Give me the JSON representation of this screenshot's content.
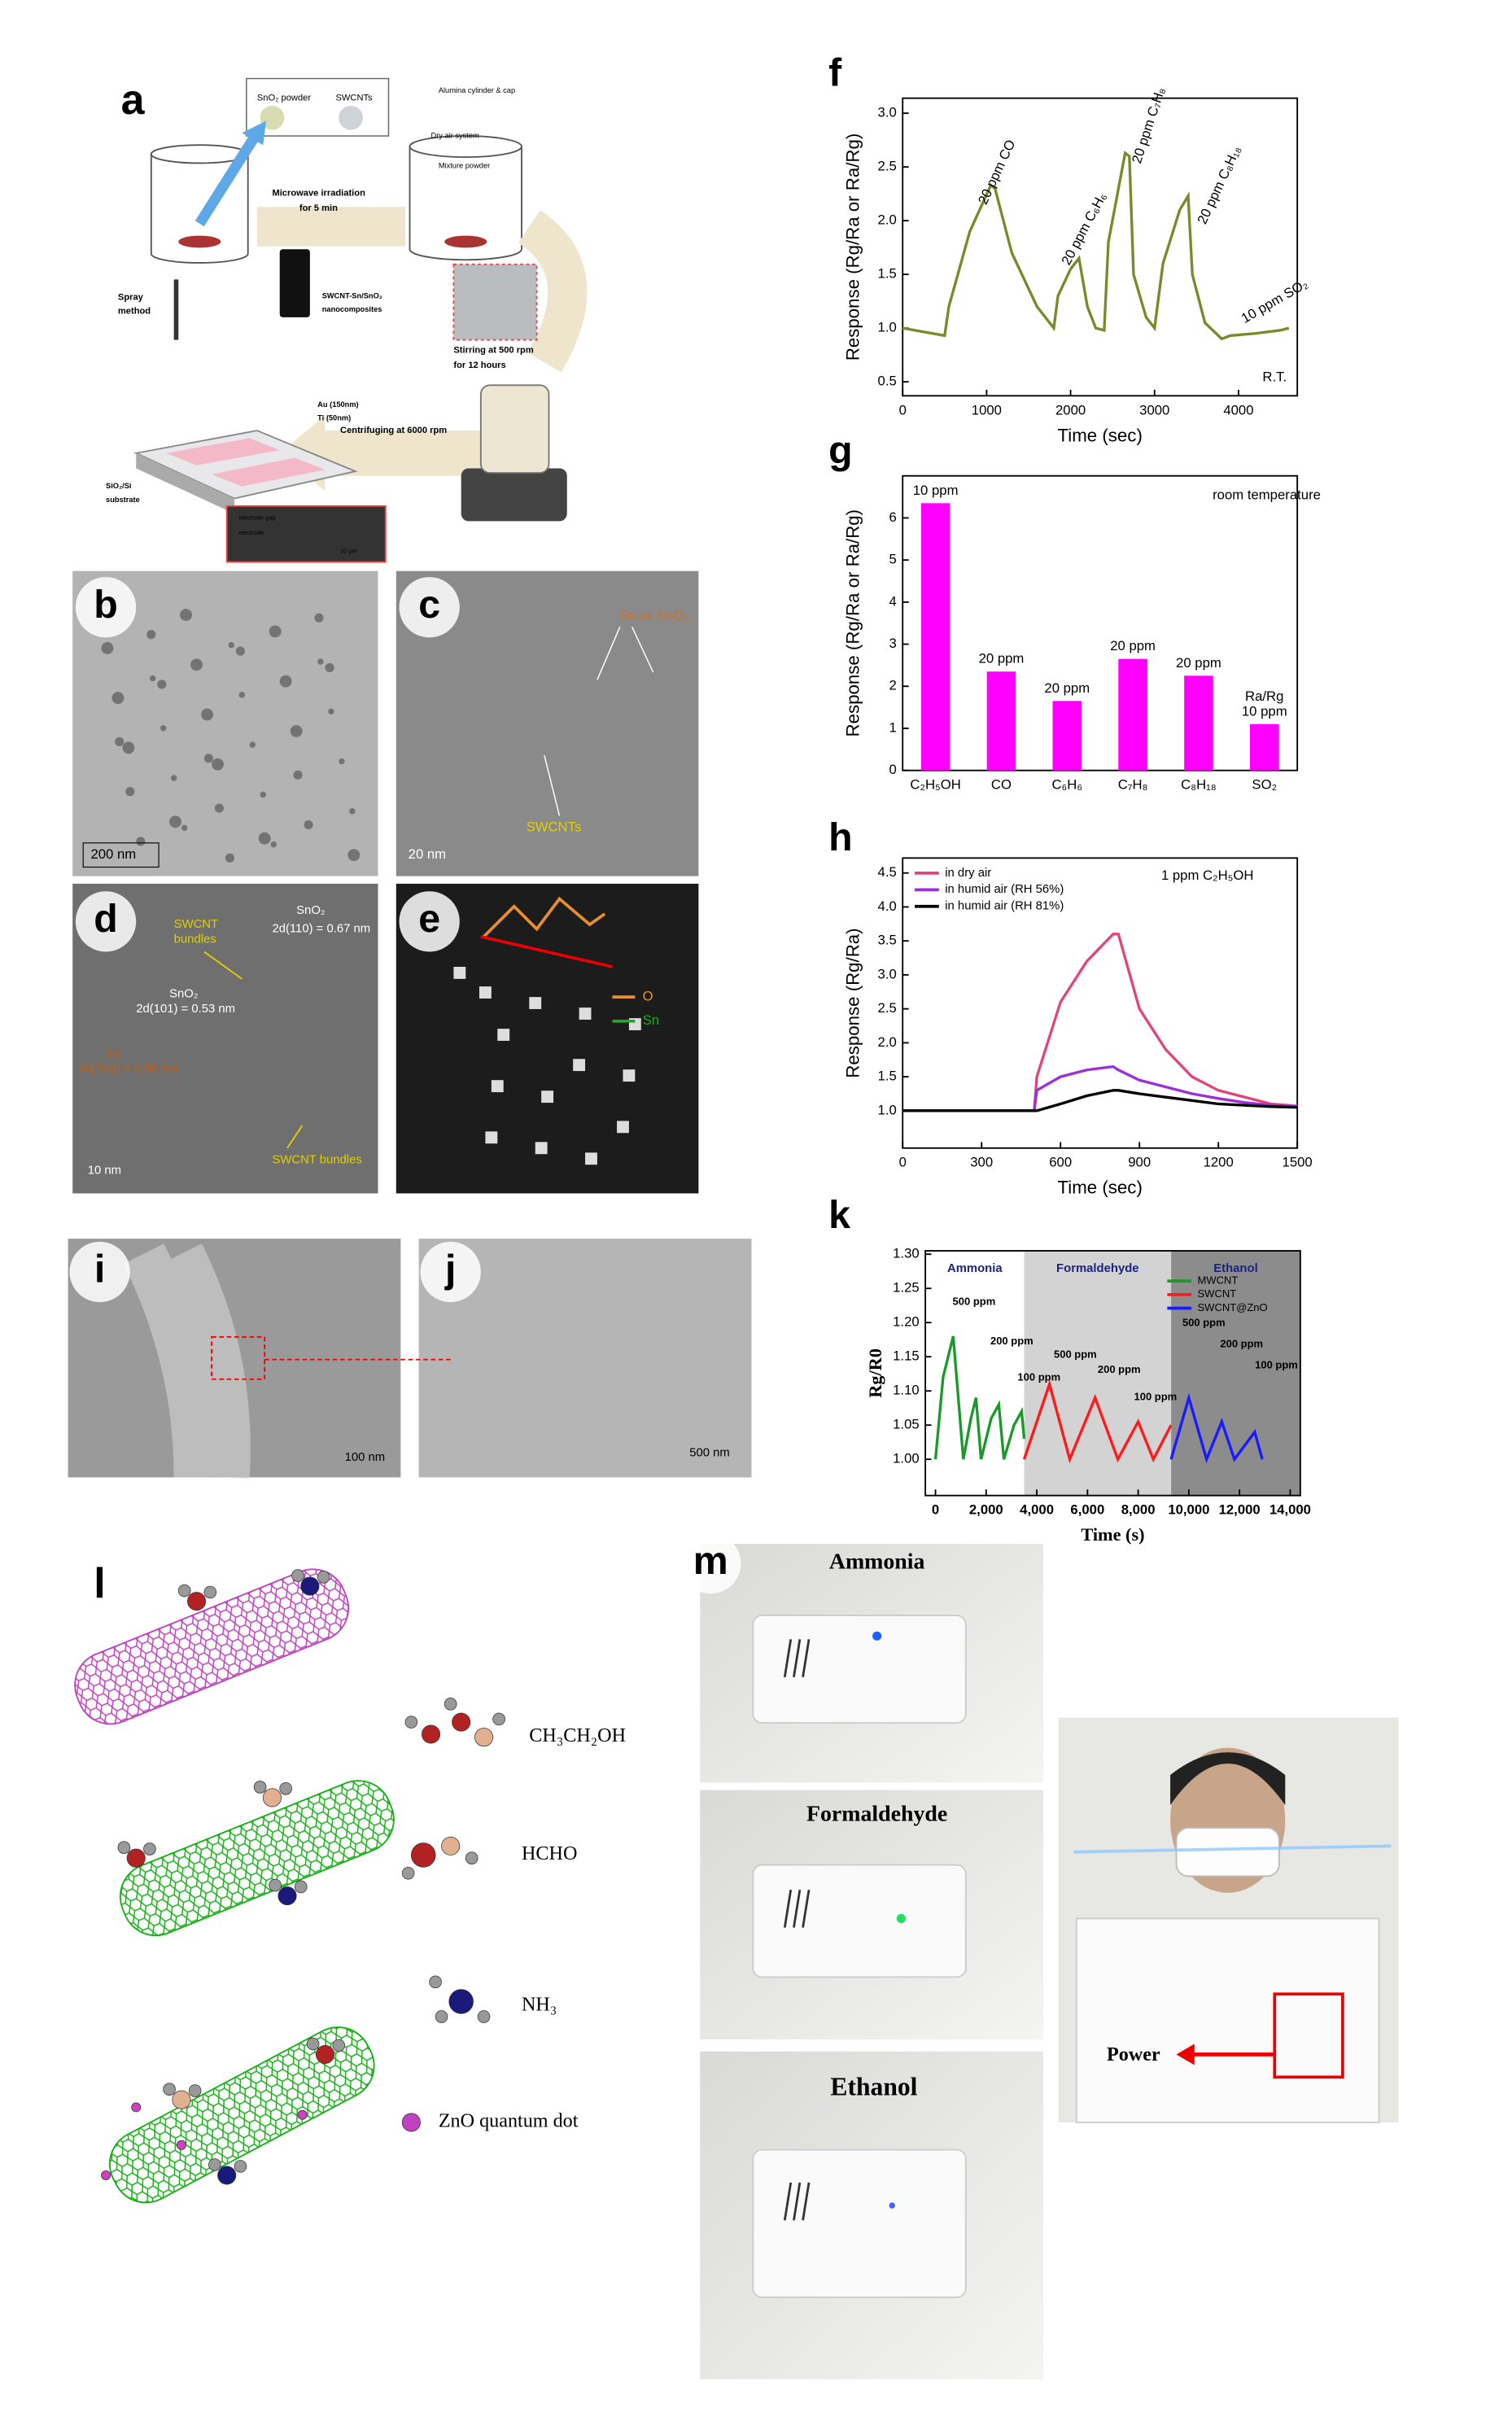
{
  "figure": {
    "panel_a": {
      "label": "a",
      "texts": [
        "SnO₂ powder",
        "SWCNTs",
        "Alumina cylinder & cap",
        "Dry air system",
        "Mixture powder",
        "Microwave irradiation",
        "for 5 min",
        "Spray",
        "method",
        "SWCNT-Sn/SnO₂",
        "nanocomposites",
        "Au (150nm)",
        "Ti (50nm)",
        "Stirring at 500 rpm",
        "for 12 hours",
        "Centrifuging at 6000 rpm",
        "SiO₂/Si",
        "substrate",
        "electrode gap",
        "electrode",
        "10 μm"
      ]
    },
    "panel_b": {
      "label": "b",
      "texts": [
        "200 nm"
      ]
    },
    "panel_c": {
      "label": "c",
      "texts": [
        "Sn or SnO₂",
        "SWCNTs",
        "20 nm"
      ]
    },
    "panel_d": {
      "label": "d",
      "texts": [
        "SWCNT",
        "bundles",
        "SnO₂",
        "2d(110) = 0.67 nm",
        "SnO₂",
        "2d(101) = 0.53 nm",
        "Sn",
        "2d(200) = 0.58 nm",
        "SWCNT bundles",
        "10 nm"
      ]
    },
    "panel_e": {
      "label": "e",
      "texts": [
        "O",
        "Sn"
      ]
    },
    "panel_i": {
      "label": "i",
      "texts": [
        "100 nm"
      ]
    },
    "panel_j": {
      "label": "j",
      "texts": [
        "500 nm"
      ]
    },
    "panel_l": {
      "label": "l",
      "texts": [
        "CH₃CH₂OH",
        "HCHO",
        "NH₃",
        "ZnO quantum dot"
      ]
    },
    "panel_m": {
      "label": "m",
      "texts": [
        "Ammonia",
        "Formaldehyde",
        "Ethanol",
        "Power"
      ]
    }
  },
  "chart_data": [
    {
      "type": "line",
      "label": "f",
      "xlabel": "Time (sec)",
      "ylabel": "Response (Rg/Ra or Ra/Rg)",
      "color": "#7a8a2a",
      "x": [
        0,
        500,
        550,
        800,
        1050,
        1100,
        1300,
        1600,
        1800,
        1850,
        2000,
        2100,
        2200,
        2300,
        2400,
        2450,
        2650,
        2700,
        2750,
        2900,
        3000,
        3100,
        3300,
        3400,
        3450,
        3600,
        3800,
        3900,
        4200,
        4500,
        4600
      ],
      "values": [
        1.0,
        0.93,
        1.2,
        1.9,
        2.33,
        2.3,
        1.7,
        1.2,
        1.0,
        1.3,
        1.55,
        1.65,
        1.2,
        1.0,
        0.98,
        1.8,
        2.63,
        2.6,
        1.5,
        1.1,
        1.0,
        1.6,
        2.1,
        2.23,
        1.5,
        1.05,
        0.9,
        0.93,
        0.95,
        0.98,
        1.0
      ],
      "xlim": [
        0,
        4700
      ],
      "ylim": [
        0.37,
        3.14
      ],
      "xticks": [
        0,
        1000,
        2000,
        3000,
        4000
      ],
      "yticks": [
        0.5,
        {
          "value": 1,
          "label": "1.0"
        },
        1.5,
        {
          "value": 2,
          "label": "2.0"
        },
        2.5,
        {
          "value": 3,
          "label": "3.0"
        }
      ],
      "annotations": [
        "20 ppm CO",
        "20 ppm C₆H₆",
        "20 ppm C₇H₈",
        "20 ppm C₈H₁₈",
        "10 ppm SO₂",
        "R.T."
      ]
    },
    {
      "type": "bar",
      "label": "g",
      "ylabel": "Response (Rg/Ra or Ra/Rg)",
      "color": "#ff00ff",
      "categories": [
        "C₂H₅OH",
        "CO",
        "C₆H₆",
        "C₇H₈",
        "C₈H₁₈",
        "SO₂"
      ],
      "values": [
        6.35,
        2.35,
        1.65,
        2.65,
        2.25,
        1.1
      ],
      "bar_labels": [
        [
          "10 ppm"
        ],
        [
          "20 ppm"
        ],
        [
          "20 ppm"
        ],
        [
          "20 ppm"
        ],
        [
          "20 ppm"
        ],
        [
          "Ra/Rg",
          "10 ppm"
        ]
      ],
      "ylim": [
        0,
        7
      ],
      "yticks": [
        0,
        1,
        2,
        3,
        4,
        5,
        6
      ],
      "annotations": [
        "room temperature"
      ]
    },
    {
      "type": "line",
      "label": "h",
      "xlabel": "Time (sec)",
      "ylabel": "Response (Rg/Ra)",
      "x": [
        0,
        500,
        510,
        600,
        700,
        800,
        820,
        900,
        1000,
        1100,
        1200,
        1300,
        1400,
        1500
      ],
      "series": [
        {
          "name": "in dry air",
          "color": "#e0457b",
          "values": [
            1.0,
            1.0,
            1.5,
            2.6,
            3.2,
            3.6,
            3.6,
            2.5,
            1.9,
            1.5,
            1.3,
            1.2,
            1.1,
            1.07
          ]
        },
        {
          "name": "in humid air (RH 56%)",
          "color": "#9b30d9",
          "values": [
            1.0,
            1.0,
            1.3,
            1.5,
            1.6,
            1.65,
            1.6,
            1.45,
            1.35,
            1.25,
            1.18,
            1.12,
            1.08,
            1.06
          ]
        },
        {
          "name": "in humid air (RH 81%)",
          "color": "#000000",
          "values": [
            1.0,
            1.0,
            1.0,
            1.1,
            1.22,
            1.3,
            1.3,
            1.25,
            1.2,
            1.15,
            1.1,
            1.08,
            1.06,
            1.05
          ]
        }
      ],
      "xlim": [
        0,
        1500
      ],
      "ylim": [
        0.45,
        4.72
      ],
      "xticks": [
        0,
        300,
        600,
        900,
        1200,
        1500
      ],
      "yticks": [
        {
          "value": 1,
          "label": "1.0"
        },
        1.5,
        {
          "value": 2,
          "label": "2.0"
        },
        2.5,
        {
          "value": 3,
          "label": "3.0"
        },
        3.5,
        {
          "value": 4,
          "label": "4.0"
        },
        4.5
      ],
      "annotations": [
        "1 ppm C₂H₅OH"
      ]
    },
    {
      "type": "line",
      "label": "k",
      "xlabel": "Time (s)",
      "ylabel": "Rg/R0",
      "regions": [
        {
          "name": "Ammonia",
          "from": -400,
          "to": 3500,
          "color": "#ffffff"
        },
        {
          "name": "Formaldehyde",
          "from": 3500,
          "to": 9300,
          "color": "#d3d3d3"
        },
        {
          "name": "Ethanol",
          "from": 9300,
          "to": 14400,
          "color": "#8c8c8c"
        }
      ],
      "series": [
        {
          "name": "MWCNT",
          "color": "#1a9a2a",
          "x": [
            0,
            300,
            700,
            1100,
            1400,
            1600,
            1800,
            2200,
            2500,
            2700,
            3100,
            3400,
            3500
          ],
          "values": [
            1.0,
            1.12,
            1.18,
            1.0,
            1.06,
            1.09,
            1.0,
            1.06,
            1.08,
            1.0,
            1.05,
            1.07,
            1.03
          ]
        },
        {
          "name": "SWCNT",
          "color": "#ff1a1a",
          "x": [
            3500,
            4500,
            5300,
            6300,
            7200,
            8000,
            8600,
            9300
          ],
          "values": [
            1.0,
            1.11,
            1.0,
            1.09,
            1.0,
            1.055,
            1.0,
            1.05
          ]
        },
        {
          "name": "SWCNT@ZnO",
          "color": "#1a1aff",
          "x": [
            9300,
            10000,
            10700,
            11300,
            11800,
            12600,
            12900
          ],
          "values": [
            1.0,
            1.09,
            1.0,
            1.055,
            1.0,
            1.04,
            1.0
          ]
        }
      ],
      "xlim": [
        -400,
        14400
      ],
      "ylim": [
        0.947,
        1.305
      ],
      "xticks": [
        0,
        {
          "value": 2000,
          "label": "2,000"
        },
        {
          "value": 4000,
          "label": "4,000"
        },
        {
          "value": 6000,
          "label": "6,000"
        },
        {
          "value": 8000,
          "label": "8,000"
        },
        {
          "value": 10000,
          "label": "10,000"
        },
        {
          "value": 12000,
          "label": "12,000"
        },
        {
          "value": 14000,
          "label": "14,000"
        }
      ],
      "yticks": [
        {
          "value": 1,
          "label": "1.00"
        },
        {
          "value": 1.05,
          "label": "1.05"
        },
        {
          "value": 1.1,
          "label": "1.10"
        },
        {
          "value": 1.15,
          "label": "1.15"
        },
        {
          "value": 1.2,
          "label": "1.20"
        },
        {
          "value": 1.25,
          "label": "1.25"
        },
        {
          "value": 1.3,
          "label": "1.30"
        }
      ],
      "annotations": [
        "500 ppm",
        "200 ppm",
        "100 ppm",
        "500 ppm",
        "200 ppm",
        "100 ppm",
        "500 ppm",
        "200 ppm",
        "100 ppm"
      ]
    }
  ]
}
